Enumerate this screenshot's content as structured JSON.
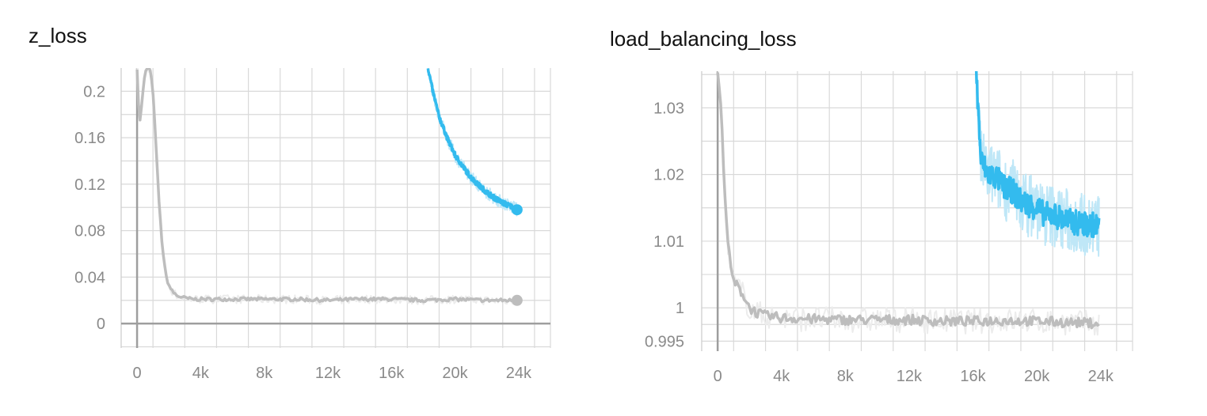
{
  "colors": {
    "grid": "#d9d9d9",
    "axis": "#9e9e9e",
    "gray_series": "#bdbdbd",
    "blue_series": "#33bbee",
    "blue_band": "#bfe7f7",
    "gray_band": "#ececec"
  },
  "chart_data": [
    {
      "type": "line",
      "title": "z_loss",
      "xlabel": "",
      "ylabel": "",
      "xlim": [
        -1000,
        26000
      ],
      "ylim": [
        -0.021,
        0.22
      ],
      "xticks": [
        0,
        4000,
        8000,
        12000,
        16000,
        20000,
        24000
      ],
      "xtick_labels": [
        "0",
        "4k",
        "8k",
        "12k",
        "16k",
        "20k",
        "24k"
      ],
      "yticks": [
        0,
        0.04,
        0.08,
        0.12,
        0.16,
        0.2
      ],
      "ytick_labels": [
        "0",
        "0.04",
        "0.08",
        "0.12",
        "0.16",
        "0.2"
      ],
      "grid": true,
      "series": [
        {
          "color": "gray",
          "x": [
            0,
            150,
            300,
            450,
            600,
            800,
            1000,
            1200,
            1400,
            1600,
            1800,
            2000,
            2200,
            2500,
            3000,
            3500,
            4000,
            6000,
            8000,
            10000,
            12000,
            14000,
            16000,
            18000,
            20000,
            22000,
            23900
          ],
          "y": [
            0.22,
            0.17,
            0.19,
            0.21,
            0.22,
            0.22,
            0.2,
            0.15,
            0.1,
            0.065,
            0.042,
            0.033,
            0.028,
            0.024,
            0.022,
            0.021,
            0.021,
            0.021,
            0.021,
            0.021,
            0.02,
            0.021,
            0.021,
            0.02,
            0.021,
            0.02,
            0.02
          ]
        },
        {
          "color": "blue",
          "x": [
            18300,
            18600,
            19000,
            19500,
            20000,
            20500,
            21000,
            21500,
            22000,
            22500,
            23000,
            23500,
            23900
          ],
          "y": [
            0.22,
            0.2,
            0.178,
            0.16,
            0.145,
            0.135,
            0.126,
            0.119,
            0.113,
            0.108,
            0.104,
            0.101,
            0.098
          ]
        }
      ]
    },
    {
      "type": "line",
      "title": "load_balancing_loss",
      "xlabel": "",
      "ylabel": "",
      "xlim": [
        -1000,
        26000
      ],
      "ylim": [
        0.9935,
        1.0355
      ],
      "xticks": [
        0,
        4000,
        8000,
        12000,
        16000,
        20000,
        24000
      ],
      "xtick_labels": [
        "0",
        "4k",
        "8k",
        "12k",
        "16k",
        "20k",
        "24k"
      ],
      "yticks": [
        0.995,
        1.0,
        1.01,
        1.02,
        1.03
      ],
      "ytick_labels": [
        "0.995",
        "1",
        "1.01",
        "1.02",
        "1.03"
      ],
      "grid": true,
      "series": [
        {
          "color": "gray",
          "x": [
            0,
            200,
            400,
            600,
            800,
            1000,
            1300,
            1600,
            2000,
            2500,
            3000,
            4000,
            6000,
            8000,
            10000,
            12000,
            14000,
            16000,
            18000,
            20000,
            22000,
            23900
          ],
          "y": [
            1.0355,
            1.03,
            1.02,
            1.011,
            1.006,
            1.004,
            1.003,
            1.002,
            1.0,
            0.9992,
            0.9988,
            0.9985,
            0.9983,
            0.9982,
            0.9982,
            0.9982,
            0.998,
            0.998,
            0.9981,
            0.998,
            0.9978,
            0.9977
          ]
        },
        {
          "color": "blue",
          "x": [
            16200,
            16500,
            17000,
            17500,
            18000,
            18500,
            19000,
            19500,
            20000,
            20500,
            21000,
            21500,
            22000,
            22500,
            23000,
            23500,
            23900
          ],
          "y": [
            1.0355,
            1.022,
            1.02,
            1.0195,
            1.018,
            1.0175,
            1.016,
            1.0155,
            1.015,
            1.014,
            1.014,
            1.0135,
            1.013,
            1.0128,
            1.0125,
            1.0125,
            1.0122
          ]
        }
      ]
    }
  ]
}
